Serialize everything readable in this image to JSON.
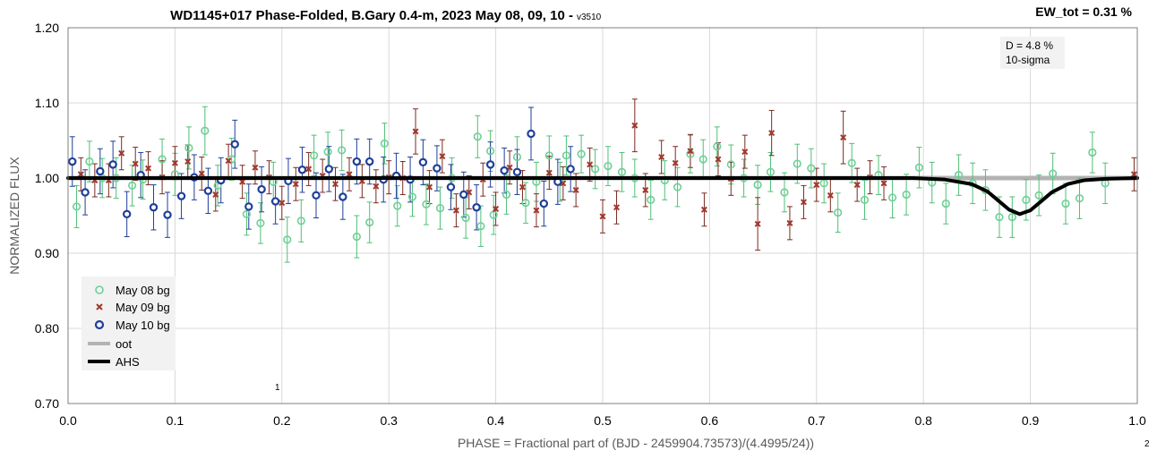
{
  "chart_data": {
    "type": "scatter",
    "title": "WD1145+017 Phase-Folded, B.Gary 0.4-m, 2023 May 08, 09, 10 -",
    "version_tag": "v3510",
    "ew_label": "EW_tot = 0.31 %",
    "xlabel": "PHASE = Fractional part of (BJD - 2459904.73573)/(4.4995/24))",
    "ylabel": "NORMALIZED FLUX",
    "xlim": [
      0.0,
      1.0
    ],
    "ylim": [
      0.7,
      1.2
    ],
    "x_ticks": [
      "0.0",
      "0.1",
      "0.2",
      "0.3",
      "0.4",
      "0.5",
      "0.6",
      "0.7",
      "0.8",
      "0.9",
      "1.0"
    ],
    "y_ticks": [
      "0.70",
      "0.80",
      "0.90",
      "1.00",
      "1.10",
      "1.20"
    ],
    "grid": true,
    "legend_position": "bottom-left",
    "annotation": {
      "lines": [
        "D = 4.8 %",
        "10-sigma"
      ]
    },
    "stray_labels": {
      "plot": "1",
      "corner": "2"
    },
    "series": [
      {
        "name": "May 08 bg",
        "marker": "circle-open",
        "color": "#6fcf97",
        "errcolor": "#4fbf77",
        "points": [
          [
            0.008,
            0.962,
            0.028
          ],
          [
            0.02,
            1.022,
            0.027
          ],
          [
            0.032,
            1.0,
            0.026
          ],
          [
            0.045,
            1.0,
            0.027
          ],
          [
            0.06,
            0.99,
            0.027
          ],
          [
            0.07,
            0.998,
            0.026
          ],
          [
            0.088,
            1.025,
            0.027
          ],
          [
            0.1,
            1.005,
            0.028
          ],
          [
            0.113,
            1.04,
            0.028
          ],
          [
            0.128,
            1.063,
            0.032
          ],
          [
            0.14,
            0.99,
            0.027
          ],
          [
            0.153,
            1.025,
            0.028
          ],
          [
            0.167,
            0.952,
            0.028
          ],
          [
            0.18,
            0.94,
            0.027
          ],
          [
            0.192,
            0.995,
            0.026
          ],
          [
            0.205,
            0.918,
            0.03
          ],
          [
            0.218,
            0.943,
            0.028
          ],
          [
            0.23,
            1.03,
            0.027
          ],
          [
            0.243,
            1.035,
            0.026
          ],
          [
            0.256,
            1.037,
            0.027
          ],
          [
            0.27,
            0.922,
            0.028
          ],
          [
            0.282,
            0.941,
            0.027
          ],
          [
            0.296,
            1.046,
            0.027
          ],
          [
            0.308,
            0.963,
            0.027
          ],
          [
            0.322,
            0.975,
            0.026
          ],
          [
            0.335,
            0.965,
            0.027
          ],
          [
            0.348,
            0.96,
            0.028
          ],
          [
            0.359,
            1.0,
            0.027
          ],
          [
            0.372,
            0.947,
            0.027
          ],
          [
            0.383,
            1.055,
            0.028
          ],
          [
            0.386,
            0.936,
            0.027
          ],
          [
            0.395,
            1.036,
            0.027
          ],
          [
            0.398,
            0.951,
            0.026
          ],
          [
            0.41,
            0.978,
            0.026
          ],
          [
            0.42,
            1.028,
            0.027
          ],
          [
            0.428,
            0.967,
            0.027
          ],
          [
            0.438,
            0.995,
            0.026
          ],
          [
            0.45,
            1.03,
            0.026
          ],
          [
            0.46,
            0.995,
            0.026
          ],
          [
            0.466,
            1.03,
            0.026
          ],
          [
            0.48,
            1.032,
            0.025
          ],
          [
            0.493,
            1.012,
            0.026
          ],
          [
            0.505,
            1.016,
            0.026
          ],
          [
            0.518,
            1.008,
            0.026
          ],
          [
            0.53,
            1.0,
            0.025
          ],
          [
            0.545,
            0.971,
            0.026
          ],
          [
            0.558,
            0.997,
            0.026
          ],
          [
            0.57,
            0.988,
            0.026
          ],
          [
            0.582,
            1.032,
            0.025
          ],
          [
            0.594,
            1.025,
            0.026
          ],
          [
            0.607,
            1.042,
            0.026
          ],
          [
            0.62,
            1.018,
            0.026
          ],
          [
            0.632,
            1.0,
            0.025
          ],
          [
            0.645,
            0.991,
            0.026
          ],
          [
            0.657,
            1.008,
            0.026
          ],
          [
            0.67,
            0.981,
            0.026
          ],
          [
            0.682,
            1.019,
            0.026
          ],
          [
            0.695,
            1.013,
            0.026
          ],
          [
            0.707,
            0.993,
            0.026
          ],
          [
            0.72,
            0.954,
            0.026
          ],
          [
            0.733,
            1.02,
            0.026
          ],
          [
            0.745,
            0.971,
            0.026
          ],
          [
            0.758,
            1.004,
            0.026
          ],
          [
            0.771,
            0.974,
            0.027
          ],
          [
            0.784,
            0.978,
            0.027
          ],
          [
            0.796,
            1.014,
            0.027
          ],
          [
            0.808,
            0.994,
            0.027
          ],
          [
            0.821,
            0.966,
            0.027
          ],
          [
            0.833,
            1.004,
            0.027
          ],
          [
            0.846,
            0.993,
            0.027
          ],
          [
            0.858,
            0.984,
            0.027
          ],
          [
            0.871,
            0.948,
            0.027
          ],
          [
            0.883,
            0.948,
            0.027
          ],
          [
            0.896,
            0.971,
            0.027
          ],
          [
            0.908,
            0.977,
            0.027
          ],
          [
            0.921,
            1.006,
            0.027
          ],
          [
            0.933,
            0.966,
            0.027
          ],
          [
            0.946,
            0.973,
            0.027
          ],
          [
            0.958,
            1.034,
            0.027
          ],
          [
            0.97,
            0.993,
            0.027
          ]
        ]
      },
      {
        "name": "May 09 bg",
        "marker": "x",
        "color": "#a0392c",
        "errcolor": "#7a2a20",
        "points": [
          [
            0.012,
            1.005,
            0.022
          ],
          [
            0.025,
            0.997,
            0.022
          ],
          [
            0.038,
            0.997,
            0.022
          ],
          [
            0.05,
            1.033,
            0.022
          ],
          [
            0.063,
            1.019,
            0.022
          ],
          [
            0.075,
            1.013,
            0.022
          ],
          [
            0.088,
            1.001,
            0.022
          ],
          [
            0.1,
            1.02,
            0.022
          ],
          [
            0.112,
            1.022,
            0.022
          ],
          [
            0.125,
            1.006,
            0.022
          ],
          [
            0.138,
            0.978,
            0.022
          ],
          [
            0.15,
            1.023,
            0.022
          ],
          [
            0.163,
            0.995,
            0.022
          ],
          [
            0.175,
            1.014,
            0.022
          ],
          [
            0.188,
            1.001,
            0.022
          ],
          [
            0.2,
            0.967,
            0.022
          ],
          [
            0.213,
            0.992,
            0.022
          ],
          [
            0.225,
            1.012,
            0.022
          ],
          [
            0.238,
            1.003,
            0.022
          ],
          [
            0.25,
            0.992,
            0.022
          ],
          [
            0.263,
            1.005,
            0.022
          ],
          [
            0.275,
            0.996,
            0.022
          ],
          [
            0.288,
            0.989,
            0.022
          ],
          [
            0.3,
            1.001,
            0.022
          ],
          [
            0.313,
            1.0,
            0.022
          ],
          [
            0.325,
            1.062,
            0.03
          ],
          [
            0.338,
            0.988,
            0.022
          ],
          [
            0.35,
            1.029,
            0.022
          ],
          [
            0.363,
            0.957,
            0.022
          ],
          [
            0.375,
            0.981,
            0.022
          ],
          [
            0.388,
            0.998,
            0.022
          ],
          [
            0.4,
            0.959,
            0.022
          ],
          [
            0.413,
            1.014,
            0.022
          ],
          [
            0.425,
            0.988,
            0.022
          ],
          [
            0.438,
            0.957,
            0.022
          ],
          [
            0.45,
            1.007,
            0.022
          ],
          [
            0.463,
            0.993,
            0.022
          ],
          [
            0.475,
            0.984,
            0.022
          ],
          [
            0.488,
            1.018,
            0.022
          ],
          [
            0.5,
            0.949,
            0.022
          ],
          [
            0.513,
            0.961,
            0.022
          ],
          [
            0.53,
            1.07,
            0.035
          ],
          [
            0.54,
            0.984,
            0.022
          ],
          [
            0.555,
            1.028,
            0.022
          ],
          [
            0.568,
            1.02,
            0.022
          ],
          [
            0.582,
            1.036,
            0.022
          ],
          [
            0.595,
            0.958,
            0.022
          ],
          [
            0.608,
            1.025,
            0.022
          ],
          [
            0.62,
            0.999,
            0.022
          ],
          [
            0.633,
            1.035,
            0.022
          ],
          [
            0.645,
            0.939,
            0.035
          ],
          [
            0.658,
            1.06,
            0.03
          ],
          [
            0.675,
            0.94,
            0.022
          ],
          [
            0.688,
            0.968,
            0.022
          ],
          [
            0.7,
            0.991,
            0.022
          ],
          [
            0.713,
            0.977,
            0.022
          ],
          [
            0.725,
            1.054,
            0.035
          ],
          [
            0.738,
            0.991,
            0.022
          ],
          [
            0.75,
            1.001,
            0.022
          ],
          [
            0.763,
            0.993,
            0.022
          ],
          [
            0.997,
            1.005,
            0.022
          ]
        ]
      },
      {
        "name": "May 10 bg",
        "marker": "circle-bold",
        "color": "#1f3f99",
        "errcolor": "#1f3f99",
        "points": [
          [
            0.004,
            1.022,
            0.033
          ],
          [
            0.016,
            0.981,
            0.03
          ],
          [
            0.03,
            1.009,
            0.03
          ],
          [
            0.042,
            1.018,
            0.031
          ],
          [
            0.055,
            0.952,
            0.03
          ],
          [
            0.068,
            1.004,
            0.03
          ],
          [
            0.08,
            0.961,
            0.03
          ],
          [
            0.093,
            0.951,
            0.03
          ],
          [
            0.106,
            0.976,
            0.03
          ],
          [
            0.118,
            1.001,
            0.03
          ],
          [
            0.131,
            0.983,
            0.03
          ],
          [
            0.143,
            0.997,
            0.03
          ],
          [
            0.156,
            1.045,
            0.032
          ],
          [
            0.169,
            0.962,
            0.03
          ],
          [
            0.181,
            0.985,
            0.03
          ],
          [
            0.194,
            0.969,
            0.03
          ],
          [
            0.206,
            0.996,
            0.03
          ],
          [
            0.219,
            1.011,
            0.03
          ],
          [
            0.232,
            0.977,
            0.03
          ],
          [
            0.244,
            1.012,
            0.03
          ],
          [
            0.257,
            0.975,
            0.03
          ],
          [
            0.27,
            1.022,
            0.03
          ],
          [
            0.282,
            1.022,
            0.03
          ],
          [
            0.295,
            0.998,
            0.03
          ],
          [
            0.307,
            1.003,
            0.03
          ],
          [
            0.32,
            0.998,
            0.03
          ],
          [
            0.332,
            1.021,
            0.03
          ],
          [
            0.345,
            1.013,
            0.03
          ],
          [
            0.358,
            0.988,
            0.03
          ],
          [
            0.37,
            0.978,
            0.03
          ],
          [
            0.382,
            0.961,
            0.03
          ],
          [
            0.395,
            1.018,
            0.03
          ],
          [
            0.408,
            1.01,
            0.03
          ],
          [
            0.42,
            1.008,
            0.03
          ],
          [
            0.433,
            1.059,
            0.035
          ],
          [
            0.445,
            0.966,
            0.03
          ],
          [
            0.458,
            0.995,
            0.03
          ],
          [
            0.47,
            1.012,
            0.03
          ]
        ]
      },
      {
        "name": "oot",
        "marker": "line",
        "color": "#b3b3b3",
        "points": [
          [
            0.0,
            1.0
          ],
          [
            1.0,
            1.0
          ]
        ]
      },
      {
        "name": "AHS",
        "marker": "line",
        "color": "#000000",
        "points": [
          [
            0.0,
            1.0
          ],
          [
            0.79,
            1.0
          ],
          [
            0.82,
            0.998
          ],
          [
            0.845,
            0.992
          ],
          [
            0.86,
            0.982
          ],
          [
            0.87,
            0.97
          ],
          [
            0.88,
            0.958
          ],
          [
            0.89,
            0.952
          ],
          [
            0.9,
            0.957
          ],
          [
            0.91,
            0.969
          ],
          [
            0.92,
            0.981
          ],
          [
            0.935,
            0.992
          ],
          [
            0.95,
            0.997
          ],
          [
            0.97,
            0.999
          ],
          [
            1.0,
            1.0
          ]
        ]
      }
    ]
  }
}
